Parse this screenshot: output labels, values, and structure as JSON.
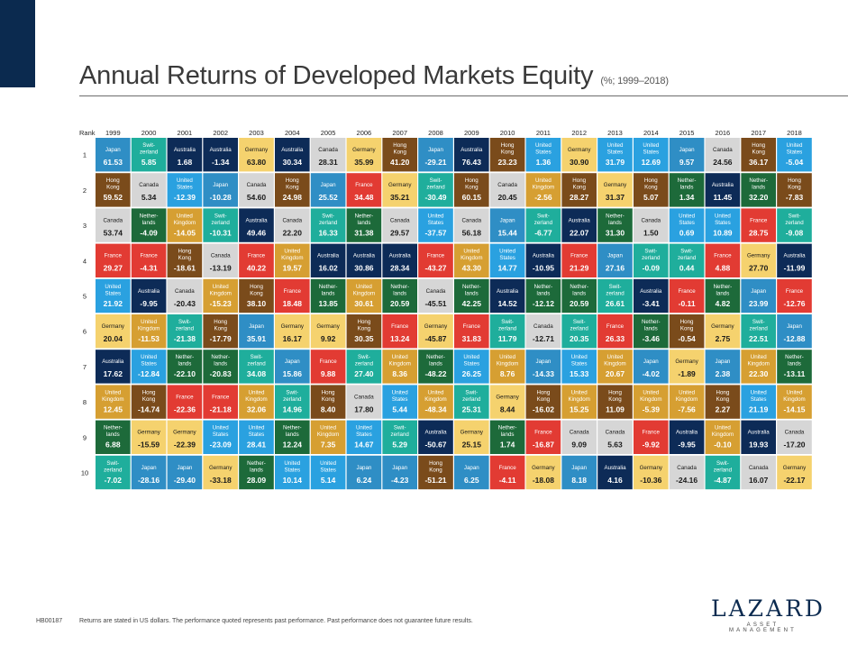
{
  "header": {
    "title": "Annual Returns of Developed Markets Equity",
    "subtitle": "(%; 1999–2018)"
  },
  "chart_data": {
    "type": "table",
    "rank_label": "Rank",
    "years": [
      "1999",
      "2000",
      "2001",
      "2002",
      "2003",
      "2004",
      "2005",
      "2006",
      "2007",
      "2008",
      "2009",
      "2010",
      "2011",
      "2012",
      "2013",
      "2014",
      "2015",
      "2016",
      "2017",
      "2018"
    ],
    "ranks": [
      "1",
      "2",
      "3",
      "4",
      "5",
      "6",
      "7",
      "8",
      "9",
      "10"
    ],
    "colors": {
      "Japan": "#2f8ec5",
      "Switzerland": "#1fae9c",
      "Australia": "#0d2b57",
      "Germany": "#f5d26e",
      "Canada": "#d6d6d6",
      "Hong Kong": "#7a4b1b",
      "United States": "#2aa1e0",
      "France": "#e23b33",
      "Netherlands": "#1d6a3a",
      "United Kingdom": "#d69f32"
    },
    "columns": [
      [
        [
          "Japan",
          "61.53"
        ],
        [
          "Hong Kong",
          "59.52"
        ],
        [
          "Canada",
          "53.74"
        ],
        [
          "France",
          "29.27"
        ],
        [
          "United States",
          "21.92"
        ],
        [
          "Germany",
          "20.04"
        ],
        [
          "Australia",
          "17.62"
        ],
        [
          "United Kingdom",
          "12.45"
        ],
        [
          "Netherlands",
          "6.88"
        ],
        [
          "Switzerland",
          "-7.02"
        ]
      ],
      [
        [
          "Switzerland",
          "5.85"
        ],
        [
          "Canada",
          "5.34"
        ],
        [
          "Netherlands",
          "-4.09"
        ],
        [
          "France",
          "-4.31"
        ],
        [
          "Australia",
          "-9.95"
        ],
        [
          "United Kingdom",
          "-11.53"
        ],
        [
          "United States",
          "-12.84"
        ],
        [
          "Hong Kong",
          "-14.74"
        ],
        [
          "Germany",
          "-15.59"
        ],
        [
          "Japan",
          "-28.16"
        ]
      ],
      [
        [
          "Australia",
          "1.68"
        ],
        [
          "United States",
          "-12.39"
        ],
        [
          "United Kingdom",
          "-14.05"
        ],
        [
          "Hong Kong",
          "-18.61"
        ],
        [
          "Canada",
          "-20.43"
        ],
        [
          "Switzerland",
          "-21.38"
        ],
        [
          "Netherlands",
          "-22.10"
        ],
        [
          "France",
          "-22.36"
        ],
        [
          "Germany",
          "-22.39"
        ],
        [
          "Japan",
          "-29.40"
        ]
      ],
      [
        [
          "Australia",
          "-1.34"
        ],
        [
          "Japan",
          "-10.28"
        ],
        [
          "Switzerland",
          "-10.31"
        ],
        [
          "Canada",
          "-13.19"
        ],
        [
          "United Kingdom",
          "-15.23"
        ],
        [
          "Hong Kong",
          "-17.79"
        ],
        [
          "Netherlands",
          "-20.83"
        ],
        [
          "France",
          "-21.18"
        ],
        [
          "United States",
          "-23.09"
        ],
        [
          "Germany",
          "-33.18"
        ]
      ],
      [
        [
          "Germany",
          "63.80"
        ],
        [
          "Canada",
          "54.60"
        ],
        [
          "Australia",
          "49.46"
        ],
        [
          "France",
          "40.22"
        ],
        [
          "Hong Kong",
          "38.10"
        ],
        [
          "Japan",
          "35.91"
        ],
        [
          "Switzerland",
          "34.08"
        ],
        [
          "United Kingdom",
          "32.06"
        ],
        [
          "United States",
          "28.41"
        ],
        [
          "Netherlands",
          "28.09"
        ]
      ],
      [
        [
          "Australia",
          "30.34"
        ],
        [
          "Hong Kong",
          "24.98"
        ],
        [
          "Canada",
          "22.20"
        ],
        [
          "United Kingdom",
          "19.57"
        ],
        [
          "France",
          "18.48"
        ],
        [
          "Germany",
          "16.17"
        ],
        [
          "Japan",
          "15.86"
        ],
        [
          "Switzerland",
          "14.96"
        ],
        [
          "Netherlands",
          "12.24"
        ],
        [
          "United States",
          "10.14"
        ]
      ],
      [
        [
          "Canada",
          "28.31"
        ],
        [
          "Japan",
          "25.52"
        ],
        [
          "Switzerland",
          "16.33"
        ],
        [
          "Australia",
          "16.02"
        ],
        [
          "Netherlands",
          "13.85"
        ],
        [
          "Germany",
          "9.92"
        ],
        [
          "France",
          "9.88"
        ],
        [
          "Hong Kong",
          "8.40"
        ],
        [
          "United Kingdom",
          "7.35"
        ],
        [
          "United States",
          "5.14"
        ]
      ],
      [
        [
          "Germany",
          "35.99"
        ],
        [
          "France",
          "34.48"
        ],
        [
          "Netherlands",
          "31.38"
        ],
        [
          "Australia",
          "30.86"
        ],
        [
          "United Kingdom",
          "30.61"
        ],
        [
          "Hong Kong",
          "30.35"
        ],
        [
          "Switzerland",
          "27.40"
        ],
        [
          "Canada",
          "17.80"
        ],
        [
          "United States",
          "14.67"
        ],
        [
          "Japan",
          "6.24"
        ]
      ],
      [
        [
          "Hong Kong",
          "41.20"
        ],
        [
          "Germany",
          "35.21"
        ],
        [
          "Canada",
          "29.57"
        ],
        [
          "Australia",
          "28.34"
        ],
        [
          "Netherlands",
          "20.59"
        ],
        [
          "France",
          "13.24"
        ],
        [
          "United Kingdom",
          "8.36"
        ],
        [
          "United States",
          "5.44"
        ],
        [
          "Switzerland",
          "5.29"
        ],
        [
          "Japan",
          "-4.23"
        ]
      ],
      [
        [
          "Japan",
          "-29.21"
        ],
        [
          "Switzerland",
          "-30.49"
        ],
        [
          "United States",
          "-37.57"
        ],
        [
          "France",
          "-43.27"
        ],
        [
          "Canada",
          "-45.51"
        ],
        [
          "Germany",
          "-45.87"
        ],
        [
          "Netherlands",
          "-48.22"
        ],
        [
          "United Kingdom",
          "-48.34"
        ],
        [
          "Australia",
          "-50.67"
        ],
        [
          "Hong Kong",
          "-51.21"
        ]
      ],
      [
        [
          "Australia",
          "76.43"
        ],
        [
          "Hong Kong",
          "60.15"
        ],
        [
          "Canada",
          "56.18"
        ],
        [
          "United Kingdom",
          "43.30"
        ],
        [
          "Netherlands",
          "42.25"
        ],
        [
          "France",
          "31.83"
        ],
        [
          "United States",
          "26.25"
        ],
        [
          "Switzerland",
          "25.31"
        ],
        [
          "Germany",
          "25.15"
        ],
        [
          "Japan",
          "6.25"
        ]
      ],
      [
        [
          "Hong Kong",
          "23.23"
        ],
        [
          "Canada",
          "20.45"
        ],
        [
          "Japan",
          "15.44"
        ],
        [
          "United States",
          "14.77"
        ],
        [
          "Australia",
          "14.52"
        ],
        [
          "Switzerland",
          "11.79"
        ],
        [
          "United Kingdom",
          "8.76"
        ],
        [
          "Germany",
          "8.44"
        ],
        [
          "Netherlands",
          "1.74"
        ],
        [
          "France",
          "-4.11"
        ]
      ],
      [
        [
          "United States",
          "1.36"
        ],
        [
          "United Kingdom",
          "-2.56"
        ],
        [
          "Switzerland",
          "-6.77"
        ],
        [
          "Australia",
          "-10.95"
        ],
        [
          "Netherlands",
          "-12.12"
        ],
        [
          "Canada",
          "-12.71"
        ],
        [
          "Japan",
          "-14.33"
        ],
        [
          "Hong Kong",
          "-16.02"
        ],
        [
          "France",
          "-16.87"
        ],
        [
          "Germany",
          "-18.08"
        ]
      ],
      [
        [
          "Germany",
          "30.90"
        ],
        [
          "Hong Kong",
          "28.27"
        ],
        [
          "Australia",
          "22.07"
        ],
        [
          "France",
          "21.29"
        ],
        [
          "Netherlands",
          "20.59"
        ],
        [
          "Switzerland",
          "20.35"
        ],
        [
          "United States",
          "15.33"
        ],
        [
          "United Kingdom",
          "15.25"
        ],
        [
          "Canada",
          "9.09"
        ],
        [
          "Japan",
          "8.18"
        ]
      ],
      [
        [
          "United States",
          "31.79"
        ],
        [
          "Germany",
          "31.37"
        ],
        [
          "Netherlands",
          "31.30"
        ],
        [
          "Japan",
          "27.16"
        ],
        [
          "Switzerland",
          "26.61"
        ],
        [
          "France",
          "26.33"
        ],
        [
          "United Kingdom",
          "20.67"
        ],
        [
          "Hong Kong",
          "11.09"
        ],
        [
          "Canada",
          "5.63"
        ],
        [
          "Australia",
          "4.16"
        ]
      ],
      [
        [
          "United States",
          "12.69"
        ],
        [
          "Hong Kong",
          "5.07"
        ],
        [
          "Canada",
          "1.50"
        ],
        [
          "Switzerland",
          "-0.09"
        ],
        [
          "Australia",
          "-3.41"
        ],
        [
          "Netherlands",
          "-3.46"
        ],
        [
          "Japan",
          "-4.02"
        ],
        [
          "United Kingdom",
          "-5.39"
        ],
        [
          "France",
          "-9.92"
        ],
        [
          "Germany",
          "-10.36"
        ]
      ],
      [
        [
          "Japan",
          "9.57"
        ],
        [
          "Netherlands",
          "1.34"
        ],
        [
          "United States",
          "0.69"
        ],
        [
          "Switzerland",
          "0.44"
        ],
        [
          "France",
          "-0.11"
        ],
        [
          "Hong Kong",
          "-0.54"
        ],
        [
          "Germany",
          "-1.89"
        ],
        [
          "United Kingdom",
          "-7.56"
        ],
        [
          "Australia",
          "-9.95"
        ],
        [
          "Canada",
          "-24.16"
        ]
      ],
      [
        [
          "Canada",
          "24.56"
        ],
        [
          "Australia",
          "11.45"
        ],
        [
          "United States",
          "10.89"
        ],
        [
          "France",
          "4.88"
        ],
        [
          "Netherlands",
          "4.82"
        ],
        [
          "Germany",
          "2.75"
        ],
        [
          "Japan",
          "2.38"
        ],
        [
          "Hong Kong",
          "2.27"
        ],
        [
          "United Kingdom",
          "-0.10"
        ],
        [
          "Switzerland",
          "-4.87"
        ]
      ],
      [
        [
          "Hong Kong",
          "36.17"
        ],
        [
          "Netherlands",
          "32.20"
        ],
        [
          "France",
          "28.75"
        ],
        [
          "Germany",
          "27.70"
        ],
        [
          "Japan",
          "23.99"
        ],
        [
          "Switzerland",
          "22.51"
        ],
        [
          "United Kingdom",
          "22.30"
        ],
        [
          "United States",
          "21.19"
        ],
        [
          "Australia",
          "19.93"
        ],
        [
          "Canada",
          "16.07"
        ]
      ],
      [
        [
          "United States",
          "-5.04"
        ],
        [
          "Hong Kong",
          "-7.83"
        ],
        [
          "Switzerland",
          "-9.08"
        ],
        [
          "Australia",
          "-11.99"
        ],
        [
          "France",
          "-12.76"
        ],
        [
          "Japan",
          "-12.88"
        ],
        [
          "Netherlands",
          "-13.11"
        ],
        [
          "United Kingdom",
          "-14.15"
        ],
        [
          "Canada",
          "-17.20"
        ],
        [
          "Germany",
          "-22.17"
        ]
      ]
    ]
  },
  "footer": {
    "code": "HB00187",
    "note": "Returns are stated in US dollars. The performance quoted represents past performance. Past performance does not guarantee future results."
  },
  "logo": {
    "name": "LAZARD",
    "sub": "ASSET MANAGEMENT"
  }
}
